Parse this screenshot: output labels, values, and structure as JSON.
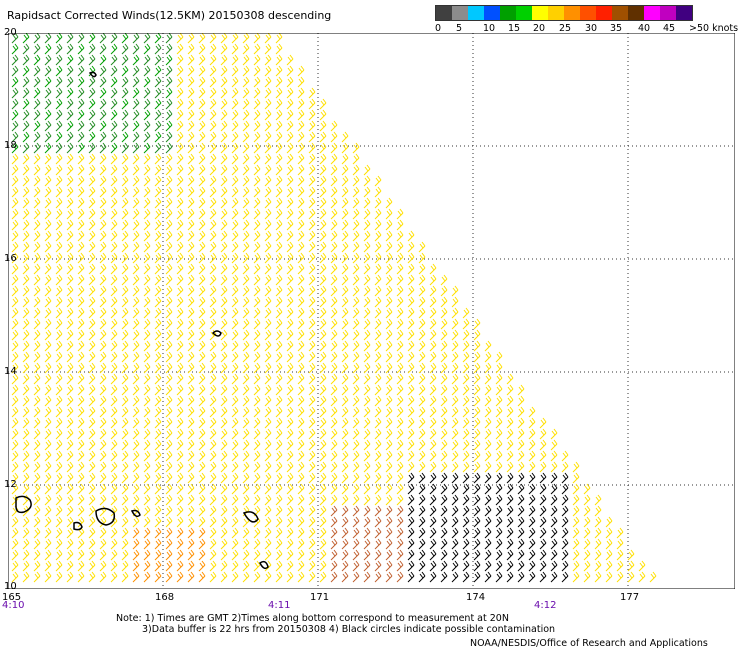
{
  "title": "Rapidsact Corrected Winds(12.5KM) 20150308 descending",
  "legend": {
    "colors": [
      "#404040",
      "#8c8c8c",
      "#00c8ff",
      "#0050ff",
      "#00a000",
      "#00d000",
      "#ffff00",
      "#ffd000",
      "#ff9000",
      "#ff5000",
      "#ff2000",
      "#a05000",
      "#603000",
      "#ff00ff",
      "#c000c0",
      "#400080"
    ],
    "labels": [
      "0",
      "5",
      "10",
      "15",
      "20",
      "25",
      "30",
      "35",
      "40",
      "45",
      ">50 knots"
    ]
  },
  "axes": {
    "lat_labels": [
      "20",
      "18",
      "16",
      "14",
      "12",
      "10"
    ],
    "lon_labels": [
      "165",
      "168",
      "171",
      "174",
      "177"
    ],
    "time_labels": [
      "4:10",
      "4:11",
      "4:12"
    ]
  },
  "notes": {
    "line1": "Note: 1) Times are GMT 2)Times along bottom correspond to measurement at 20N",
    "line2": "3)Data buffer is 22 hrs from 20150308 4) Black circles indicate possible contamination",
    "credit": "NOAA/NESDIS/Office of Research and Applications"
  },
  "wind_colors": {
    "calm": "#228b22",
    "light": "#00a000",
    "moderate": "#ffe000",
    "fresh": "#ffd000",
    "strong": "#ff9000",
    "gale": "#c06030",
    "flagged": "#000000",
    "low": "#0050ff"
  }
}
